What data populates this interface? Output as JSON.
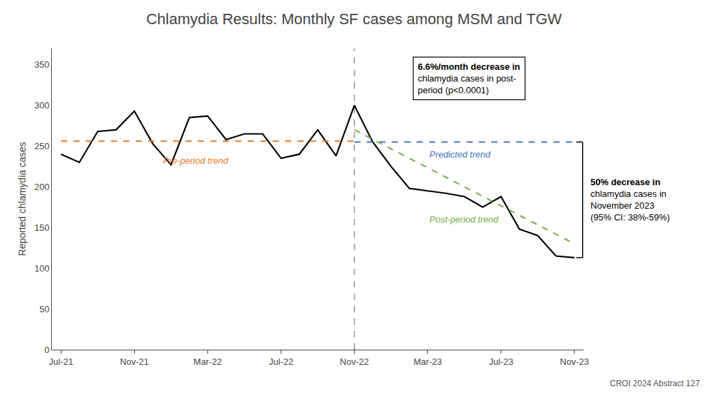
{
  "chart_data": {
    "type": "line",
    "title": "Chlamydia Results: Monthly SF cases among MSM and TGW",
    "ylabel": "Reported chlamydia cases",
    "footnote": "CROI 2024 Abstract 127",
    "xlim": [
      -0.5,
      28.5
    ],
    "xticks": [
      {
        "value": 0,
        "label": "Jul-21"
      },
      {
        "value": 4,
        "label": "Nov-21"
      },
      {
        "value": 8,
        "label": "Mar-22"
      },
      {
        "value": 12,
        "label": "Jul-22"
      },
      {
        "value": 16,
        "label": "Nov-22"
      },
      {
        "value": 20,
        "label": "Mar-23"
      },
      {
        "value": 24,
        "label": "Jul-23"
      },
      {
        "value": 28,
        "label": "Nov-23"
      }
    ],
    "ylim": [
      0,
      370
    ],
    "yticks": [
      0,
      50,
      100,
      150,
      200,
      250,
      300,
      350
    ],
    "grid": false,
    "series": [
      {
        "x": [
          0,
          1,
          2,
          3,
          4,
          5,
          6,
          7,
          8,
          9,
          10,
          11,
          12,
          13,
          14,
          15,
          16,
          17,
          18,
          19,
          20,
          21,
          22,
          23,
          24,
          25,
          26,
          27,
          28
        ],
        "values": [
          240,
          230,
          268,
          270,
          293,
          253,
          227,
          285,
          287,
          258,
          265,
          265,
          235,
          240,
          270,
          238,
          300,
          255,
          225,
          198,
          195,
          192,
          188,
          175,
          188,
          148,
          140,
          115,
          113
        ],
        "color": "#000000",
        "line_style": "solid"
      },
      {
        "name": "Pre-period trend",
        "x": [
          0,
          16
        ],
        "values": [
          256,
          256
        ],
        "color": "#E87722",
        "line_style": "dashed"
      },
      {
        "name": "Predicted trend",
        "x": [
          16,
          28
        ],
        "values": [
          255,
          255
        ],
        "color": "#4472C4",
        "line_style": "dashed"
      },
      {
        "name": "Post-period trend",
        "x": [
          16,
          28
        ],
        "values": [
          270,
          130
        ],
        "color": "#70AD47",
        "line_style": "dashed"
      }
    ],
    "vertical_lines": [
      {
        "x": 16,
        "color": "#909090",
        "line_style": "dashed"
      }
    ],
    "annotations": [
      "6.6%/month decrease in\nchlamydia cases in post-\nperiod (p<0.0001)",
      "50% decrease in\nchlamydia cases in\nNovember 2023\n(95% CI: 38%-59%)"
    ]
  }
}
